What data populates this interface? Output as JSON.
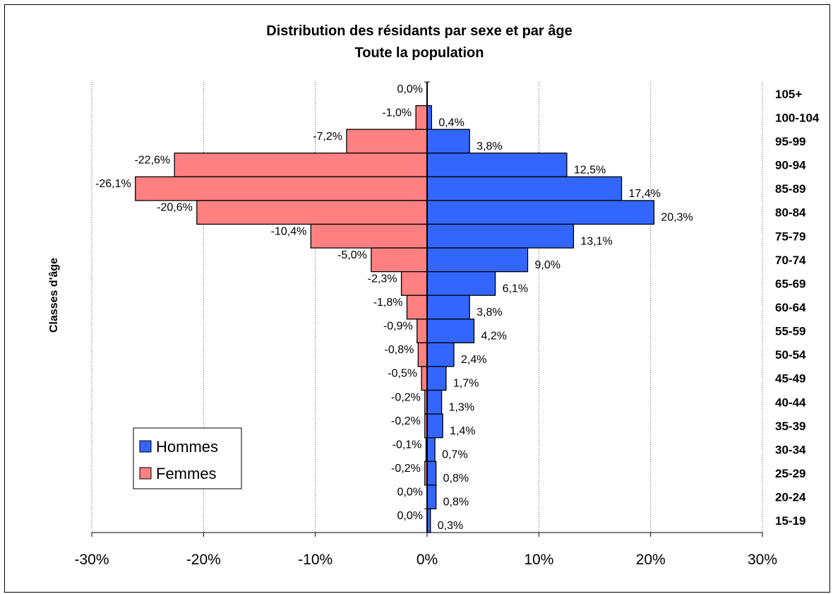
{
  "chart_data": {
    "type": "bar",
    "orientation": "horizontal",
    "title": "Distribution des résidants par sexe et par âge",
    "subtitle": "Toute la population",
    "ylabel": "Classes d'âge",
    "xlabel": "",
    "xlim": [
      -30,
      30
    ],
    "x_ticks": [
      -30,
      -20,
      -10,
      0,
      10,
      20,
      30
    ],
    "x_tick_labels": [
      "-30%",
      "-20%",
      "-10%",
      "0%",
      "10%",
      "20%",
      "30%"
    ],
    "grid": "vertical dashed gridlines",
    "legend_position": "bottom-left",
    "categories": [
      "105+",
      "100-104",
      "95-99",
      "90-94",
      "85-89",
      "80-84",
      "75-79",
      "70-74",
      "65-69",
      "60-64",
      "55-59",
      "50-54",
      "45-49",
      "40-44",
      "35-39",
      "30-34",
      "25-29",
      "20-24",
      "15-19"
    ],
    "series": [
      {
        "name": "Hommes",
        "color": "#3366FF",
        "values": [
          0.0,
          0.4,
          3.8,
          12.5,
          17.4,
          20.3,
          13.1,
          9.0,
          6.1,
          3.8,
          4.2,
          2.4,
          1.7,
          1.3,
          1.4,
          0.7,
          0.8,
          0.8,
          0.3
        ],
        "labels": [
          "",
          "0,4%",
          "3,8%",
          "12,5%",
          "17,4%",
          "20,3%",
          "13,1%",
          "9,0%",
          "6,1%",
          "3,8%",
          "4,2%",
          "2,4%",
          "1,7%",
          "1,3%",
          "1,4%",
          "0,7%",
          "0,8%",
          "0,8%",
          "0,3%"
        ]
      },
      {
        "name": "Femmes",
        "color": "#FF8080",
        "values": [
          0.0,
          -1.0,
          -7.2,
          -22.6,
          -26.1,
          -20.6,
          -10.4,
          -5.0,
          -2.3,
          -1.8,
          -0.9,
          -0.8,
          -0.5,
          -0.2,
          -0.2,
          -0.1,
          -0.2,
          0.0,
          0.0
        ],
        "labels": [
          "0,0%",
          "-1,0%",
          "-7,2%",
          "-22,6%",
          "-26,1%",
          "-20,6%",
          "-10,4%",
          "-5,0%",
          "-2,3%",
          "-1,8%",
          "-0,9%",
          "-0,8%",
          "-0,5%",
          "-0,2%",
          "-0,2%",
          "-0,1%",
          "-0,2%",
          "0,0%",
          "0,0%"
        ]
      }
    ]
  }
}
